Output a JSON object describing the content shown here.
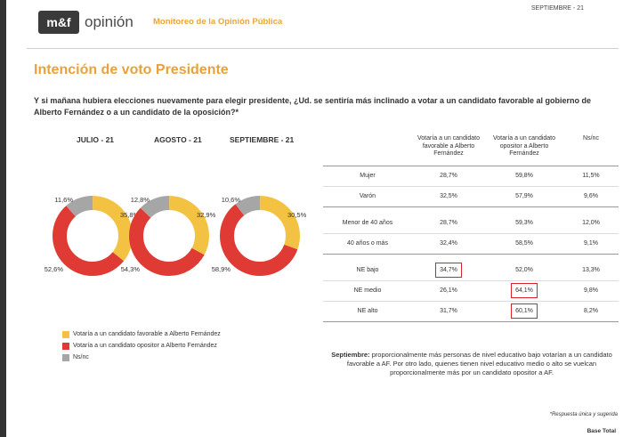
{
  "header": {
    "logo_mark": "m&f",
    "logo_word": "opinión",
    "subtitle": "Monitoreo de la Opinión Pública",
    "date": "SEPTIEMBRE - 21"
  },
  "title": "Intención de voto Presidente",
  "question": "Y si mañana hubiera elecciones nuevamente para elegir presidente, ¿Ud. se sentiría más inclinado a votar a un candidato favorable al gobierno de Alberto Fernández o a un candidato de la oposición?*",
  "colors": {
    "favorable": "#f3c242",
    "opositor": "#e03a34",
    "nsnc": "#a6a6a6",
    "accent": "#e9a23b"
  },
  "chart_data": {
    "type": "pie",
    "series_names": [
      "Votaría a un candidato favorable a Alberto Fernández",
      "Votaría a un candidato opositor a Alberto Fernández",
      "Ns/nc"
    ],
    "charts": [
      {
        "title": "JULIO - 21",
        "values": [
          35.8,
          52.6,
          11.6
        ],
        "labels": [
          "35,8%",
          "52,6%",
          "11,6%"
        ]
      },
      {
        "title": "AGOSTO - 21",
        "values": [
          32.9,
          54.3,
          12.8
        ],
        "labels": [
          "32,9%",
          "54,3%",
          "12,8%"
        ]
      },
      {
        "title": "SEPTIEMBRE - 21",
        "values": [
          30.5,
          58.9,
          10.6
        ],
        "labels": [
          "30,5%",
          "58,9%",
          "10,6%"
        ]
      }
    ],
    "table": {
      "columns": [
        "",
        "Votaría a un candidato favorable a Alberto Fernández",
        "Votaría a un candidato opositor a Alberto Fernández",
        "Ns/nc"
      ],
      "groups": [
        {
          "rows": [
            {
              "label": "Mujer",
              "values": [
                "28,7%",
                "59,8%",
                "11,5%"
              ]
            },
            {
              "label": "Varón",
              "values": [
                "32,5%",
                "57,9%",
                "9,6%"
              ]
            }
          ]
        },
        {
          "rows": [
            {
              "label": "Menor de 40 años",
              "values": [
                "28,7%",
                "59,3%",
                "12,0%"
              ]
            },
            {
              "label": "40 años o más",
              "values": [
                "32,4%",
                "58,5%",
                "9,1%"
              ]
            }
          ]
        },
        {
          "rows": [
            {
              "label": "NE bajo",
              "values": [
                "34,7%",
                "52,0%",
                "13,3%"
              ]
            },
            {
              "label": "NE medio",
              "values": [
                "26,1%",
                "64,1%",
                "9,8%"
              ]
            },
            {
              "label": "NE alto",
              "values": [
                "31,7%",
                "60,1%",
                "8,2%"
              ]
            }
          ]
        }
      ],
      "highlighted": [
        "NE bajo|0",
        "NE medio|1",
        "NE alto|1"
      ]
    }
  },
  "note": {
    "lead": "Septiembre:",
    "text": " proporcionalmente más personas de nivel educativo bajo votarían a un candidato favorable a AF. Por otro lado, quienes tienen nivel educativo medio o alto se vuelcan proporcionalmente más por un candidato opositor a AF."
  },
  "footnote": "*Respuesta única y sugerida",
  "base": "Base Total"
}
